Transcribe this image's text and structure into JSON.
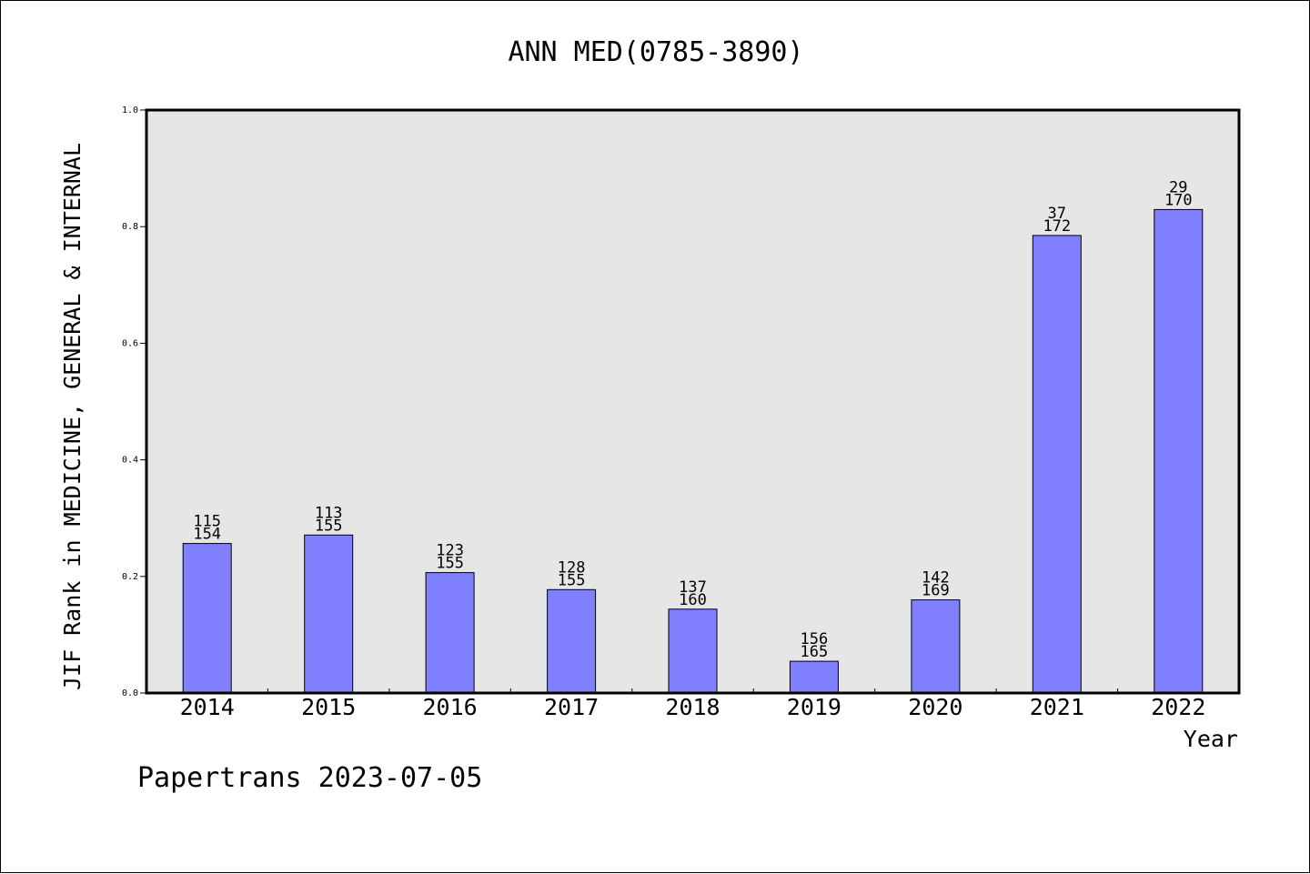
{
  "chart_data": {
    "type": "bar",
    "title": "ANN MED(0785-3890)",
    "ylabel": "JIF Rank in MEDICINE, GENERAL & INTERNAL",
    "xlabel": "Year",
    "ylim": [
      0,
      1.0
    ],
    "yticks": [
      "0.0",
      "0.2",
      "0.4",
      "0.6",
      "0.8",
      "1.0"
    ],
    "categories": [
      "2014",
      "2015",
      "2016",
      "2017",
      "2018",
      "2019",
      "2020",
      "2021",
      "2022"
    ],
    "values": [
      0.2565,
      0.271,
      0.2065,
      0.1774,
      0.1438,
      0.0545,
      0.1598,
      0.7849,
      0.8294
    ],
    "rank_labels": [
      [
        "115",
        "154"
      ],
      [
        "113",
        "155"
      ],
      [
        "123",
        "155"
      ],
      [
        "128",
        "155"
      ],
      [
        "137",
        "160"
      ],
      [
        "156",
        "165"
      ],
      [
        "142",
        "169"
      ],
      [
        "37",
        "172"
      ],
      [
        "29",
        "170"
      ]
    ],
    "bar_color": "#8080ff",
    "plot_background": "#e6e6e6",
    "grid": false
  },
  "footer": "Papertrans 2023-07-05"
}
